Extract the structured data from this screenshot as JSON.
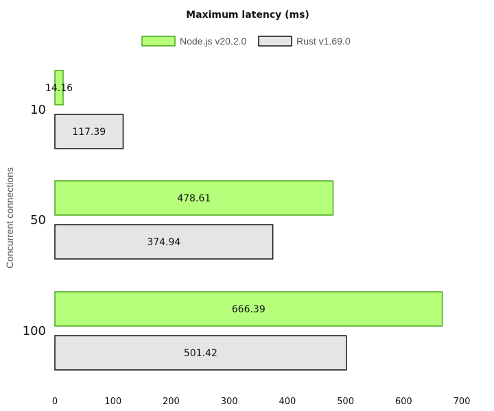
{
  "chart_data": {
    "type": "bar",
    "orientation": "horizontal",
    "title": "Maximum latency (ms)",
    "ylabel": "Concurrent connections",
    "xlabel": "",
    "categories": [
      "10",
      "50",
      "100"
    ],
    "series": [
      {
        "name": "Node.js v20.2.0",
        "values": [
          14.16,
          478.61,
          666.39
        ],
        "color": "#b5ff7a",
        "border": "#4aa61c"
      },
      {
        "name": "Rust v1.69.0",
        "values": [
          117.39,
          374.94,
          501.42
        ],
        "color": "#e5e5e5",
        "border": "#111111"
      }
    ],
    "data_labels": [
      [
        "14.16",
        "478.61",
        "666.39"
      ],
      [
        "117.39",
        "374.94",
        "501.42"
      ]
    ],
    "xlim": [
      0,
      700
    ],
    "x_ticks": [
      "0",
      "100",
      "200",
      "300",
      "400",
      "500",
      "600",
      "700"
    ],
    "grid": false,
    "legend_position": "top"
  }
}
